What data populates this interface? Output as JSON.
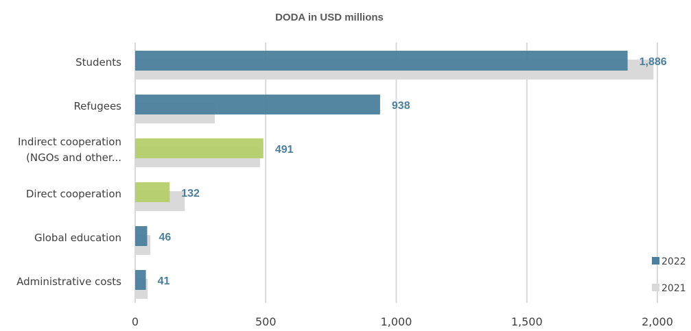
{
  "chart_data": {
    "type": "bar",
    "orientation": "horizontal",
    "subtitle": "DODA in USD millions",
    "categories": [
      [
        "Students"
      ],
      [
        "Refugees"
      ],
      [
        "Indirect cooperation",
        "(NGOs and other..."
      ],
      [
        "Direct cooperation"
      ],
      [
        "Global education"
      ],
      [
        "Administrative costs"
      ]
    ],
    "series": [
      {
        "name": "2022",
        "values": [
          1886,
          938,
          491,
          132,
          46,
          41
        ],
        "data_labels": [
          "1,886",
          "938",
          "491",
          "132",
          "46",
          "41"
        ]
      },
      {
        "name": "2021",
        "values": [
          1985,
          305,
          478,
          190,
          58,
          48
        ]
      }
    ],
    "xlim": [
      0,
      2000
    ],
    "xticks": [
      0,
      500,
      1000,
      1500,
      2000
    ],
    "xtick_labels": [
      "0",
      "500",
      "1,000",
      "1,500",
      "2,000"
    ],
    "grid": true,
    "legend_position": "bottom-right"
  },
  "colors": {
    "series_2022_blue": "#4b7f9c",
    "series_2022_green": "#b5cf6b",
    "series_2021": "#d9d9d9",
    "highlight_categories": [
      2,
      3
    ]
  }
}
